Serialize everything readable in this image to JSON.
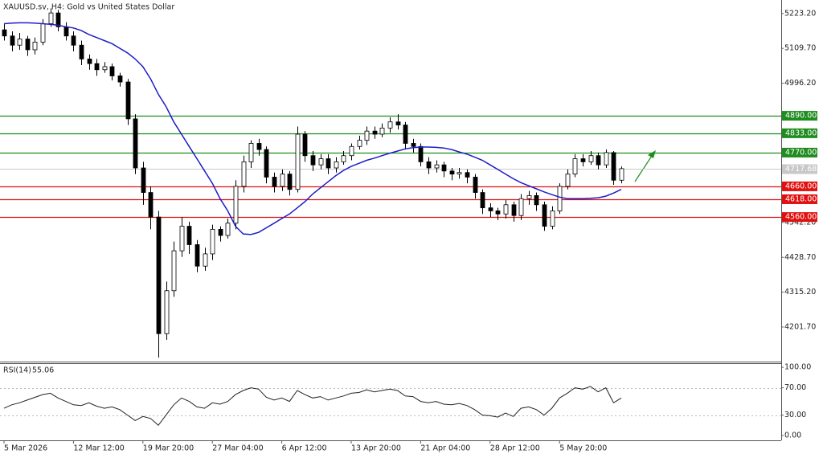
{
  "chart_data": [
    {
      "type": "candlestick",
      "title": "XAUUSD.sv, H4:  Gold vs United States Dollar",
      "categories": [
        "5 Mar 2026",
        null,
        null,
        null,
        null,
        null,
        null,
        null,
        null,
        "12 Mar 12:00",
        null,
        null,
        null,
        null,
        null,
        null,
        null,
        null,
        "19 Mar 20:00",
        null,
        null,
        null,
        null,
        null,
        null,
        null,
        null,
        "27 Mar 04:00",
        null,
        null,
        null,
        null,
        null,
        null,
        null,
        null,
        "6 Apr 12:00",
        null,
        null,
        null,
        null,
        null,
        null,
        null,
        null,
        "13 Apr 20:00",
        null,
        null,
        null,
        null,
        null,
        null,
        null,
        null,
        "21 Apr 04:00",
        null,
        null,
        null,
        null,
        null,
        null,
        null,
        null,
        "28 Apr 12:00",
        null,
        null,
        null,
        null,
        null,
        null,
        null,
        null,
        "5 May 20:00",
        null,
        null,
        null,
        null,
        null,
        null,
        null,
        null
      ],
      "open": [
        5170,
        5150,
        5120,
        5140,
        5105,
        5130,
        5190,
        5225,
        5180,
        5150,
        5120,
        5075,
        5060,
        5040,
        5050,
        5020,
        5000,
        4880,
        4720,
        4640,
        4560,
        4180,
        4320,
        4450,
        4530,
        4470,
        4400,
        4440,
        4520,
        4500,
        4540,
        4660,
        4740,
        4800,
        4780,
        4690,
        4660,
        4700,
        4650,
        4830,
        4760,
        4730,
        4750,
        4720,
        4740,
        4760,
        4790,
        4810,
        4840,
        4830,
        4850,
        4870,
        4860,
        4800,
        4790,
        4740,
        4720,
        4730,
        4710,
        4700,
        4705,
        4690,
        4640,
        4590,
        4580,
        4570,
        4600,
        4565,
        4620,
        4630,
        4600,
        4530,
        4580,
        4660,
        4700,
        4750,
        4740,
        4760,
        4730,
        4770,
        4680
      ],
      "high": [
        5190,
        5165,
        5160,
        5150,
        5145,
        5205,
        5240,
        5235,
        5195,
        5165,
        5135,
        5090,
        5075,
        5065,
        5060,
        5030,
        5010,
        4895,
        4740,
        4660,
        4580,
        4350,
        4480,
        4560,
        4545,
        4485,
        4460,
        4535,
        4530,
        4555,
        4680,
        4760,
        4810,
        4815,
        4790,
        4705,
        4715,
        4710,
        4855,
        4840,
        4775,
        4765,
        4765,
        4755,
        4775,
        4800,
        4825,
        4855,
        4855,
        4865,
        4885,
        4895,
        4870,
        4815,
        4800,
        4755,
        4745,
        4740,
        4720,
        4720,
        4715,
        4700,
        4650,
        4605,
        4590,
        4615,
        4610,
        4635,
        4645,
        4640,
        4610,
        4595,
        4670,
        4715,
        4765,
        4765,
        4775,
        4770,
        4780,
        4775,
        4725
      ],
      "low": [
        5135,
        5100,
        5105,
        5085,
        5090,
        5120,
        5180,
        5165,
        5135,
        5100,
        5055,
        5040,
        5020,
        5030,
        5005,
        4985,
        4860,
        4700,
        4600,
        4520,
        4102,
        4160,
        4300,
        4430,
        4440,
        4380,
        4385,
        4420,
        4480,
        4490,
        4520,
        4640,
        4720,
        4760,
        4670,
        4640,
        4645,
        4630,
        4640,
        4740,
        4710,
        4715,
        4700,
        4705,
        4730,
        4745,
        4780,
        4795,
        4815,
        4820,
        4835,
        4845,
        4780,
        4770,
        4725,
        4700,
        4705,
        4690,
        4680,
        4685,
        4670,
        4620,
        4570,
        4560,
        4550,
        4555,
        4545,
        4550,
        4600,
        4580,
        4515,
        4520,
        4570,
        4650,
        4690,
        4725,
        4730,
        4715,
        4720,
        4665,
        4670
      ],
      "close": [
        5150,
        5120,
        5140,
        5105,
        5130,
        5190,
        5225,
        5180,
        5150,
        5120,
        5075,
        5060,
        5040,
        5050,
        5020,
        5000,
        4880,
        4720,
        4640,
        4560,
        4180,
        4320,
        4450,
        4530,
        4470,
        4400,
        4440,
        4520,
        4500,
        4540,
        4660,
        4740,
        4800,
        4780,
        4690,
        4660,
        4700,
        4650,
        4830,
        4760,
        4730,
        4750,
        4720,
        4740,
        4760,
        4790,
        4810,
        4840,
        4830,
        4850,
        4870,
        4860,
        4800,
        4790,
        4740,
        4720,
        4730,
        4710,
        4700,
        4705,
        4690,
        4640,
        4590,
        4580,
        4570,
        4600,
        4565,
        4620,
        4630,
        4600,
        4530,
        4580,
        4660,
        4700,
        4750,
        4740,
        4760,
        4730,
        4770,
        4680,
        4717.68
      ],
      "close_label": "4717.68",
      "series": [
        {
          "color": "#1c1cc8",
          "values": [
            5190,
            5192,
            5193,
            5193,
            5192,
            5190,
            5188,
            5185,
            5180,
            5176,
            5168,
            5155,
            5145,
            5135,
            5125,
            5110,
            5095,
            5075,
            5050,
            5010,
            4960,
            4920,
            4870,
            4830,
            4790,
            4750,
            4710,
            4670,
            4620,
            4580,
            4530,
            4505,
            4503,
            4510,
            4525,
            4540,
            4555,
            4570,
            4590,
            4610,
            4635,
            4655,
            4675,
            4695,
            4712,
            4725,
            4735,
            4745,
            4752,
            4760,
            4768,
            4775,
            4782,
            4786,
            4788,
            4788,
            4787,
            4785,
            4780,
            4772,
            4765,
            4755,
            4745,
            4730,
            4715,
            4700,
            4685,
            4672,
            4662,
            4652,
            4642,
            4633,
            4625,
            4620,
            4620,
            4620,
            4621,
            4623,
            4628,
            4638,
            4650
          ]
        }
      ],
      "ylim": [
        4089,
        5262
      ],
      "yticks": [
        {
          "value": 5223.2,
          "label": "5223.20"
        },
        {
          "value": 5109.7,
          "label": "5109.70"
        },
        {
          "value": 4996.2,
          "label": "4996.20"
        },
        {
          "value": 4542.2,
          "label": "4542.20"
        },
        {
          "value": 4428.7,
          "label": "4428.70"
        },
        {
          "value": 4315.2,
          "label": "4315.20"
        },
        {
          "value": 4201.7,
          "label": "4201.70"
        }
      ],
      "levels": [
        {
          "value": 4890,
          "label": "4890.00",
          "color": "#1e8c1e"
        },
        {
          "value": 4833,
          "label": "4833.00",
          "color": "#1e8c1e"
        },
        {
          "value": 4770,
          "label": "4770.00",
          "color": "#1e8c1e"
        },
        {
          "value": 4660,
          "label": "4660.00",
          "color": "#e01010"
        },
        {
          "value": 4618,
          "label": "4618.00",
          "color": "#e01010"
        },
        {
          "value": 4560,
          "label": "4560.00",
          "color": "#e01010"
        }
      ]
    },
    {
      "type": "line",
      "title": "RSI(14)",
      "series": [
        {
          "color": "#222222",
          "values": [
            40,
            45,
            48,
            52,
            56,
            60,
            62,
            55,
            50,
            45,
            44,
            48,
            43,
            40,
            42,
            38,
            30,
            22,
            28,
            25,
            15,
            30,
            45,
            55,
            50,
            42,
            40,
            48,
            46,
            50,
            60,
            66,
            70,
            68,
            56,
            52,
            55,
            50,
            66,
            60,
            55,
            57,
            52,
            55,
            58,
            62,
            63,
            67,
            64,
            66,
            68,
            66,
            58,
            57,
            50,
            48,
            50,
            46,
            45,
            47,
            44,
            38,
            30,
            29,
            27,
            33,
            28,
            40,
            42,
            38,
            30,
            40,
            55,
            62,
            70,
            68,
            72,
            64,
            70,
            48,
            55.06
          ]
        }
      ],
      "ylim": [
        -7,
        106
      ],
      "yticks": [
        {
          "value": 100,
          "label": "100.00"
        },
        {
          "value": 70,
          "label": "70.00"
        },
        {
          "value": 30,
          "label": "30.00"
        },
        {
          "value": 0,
          "label": "0.00"
        }
      ],
      "grid_at": [
        70,
        30
      ]
    }
  ]
}
